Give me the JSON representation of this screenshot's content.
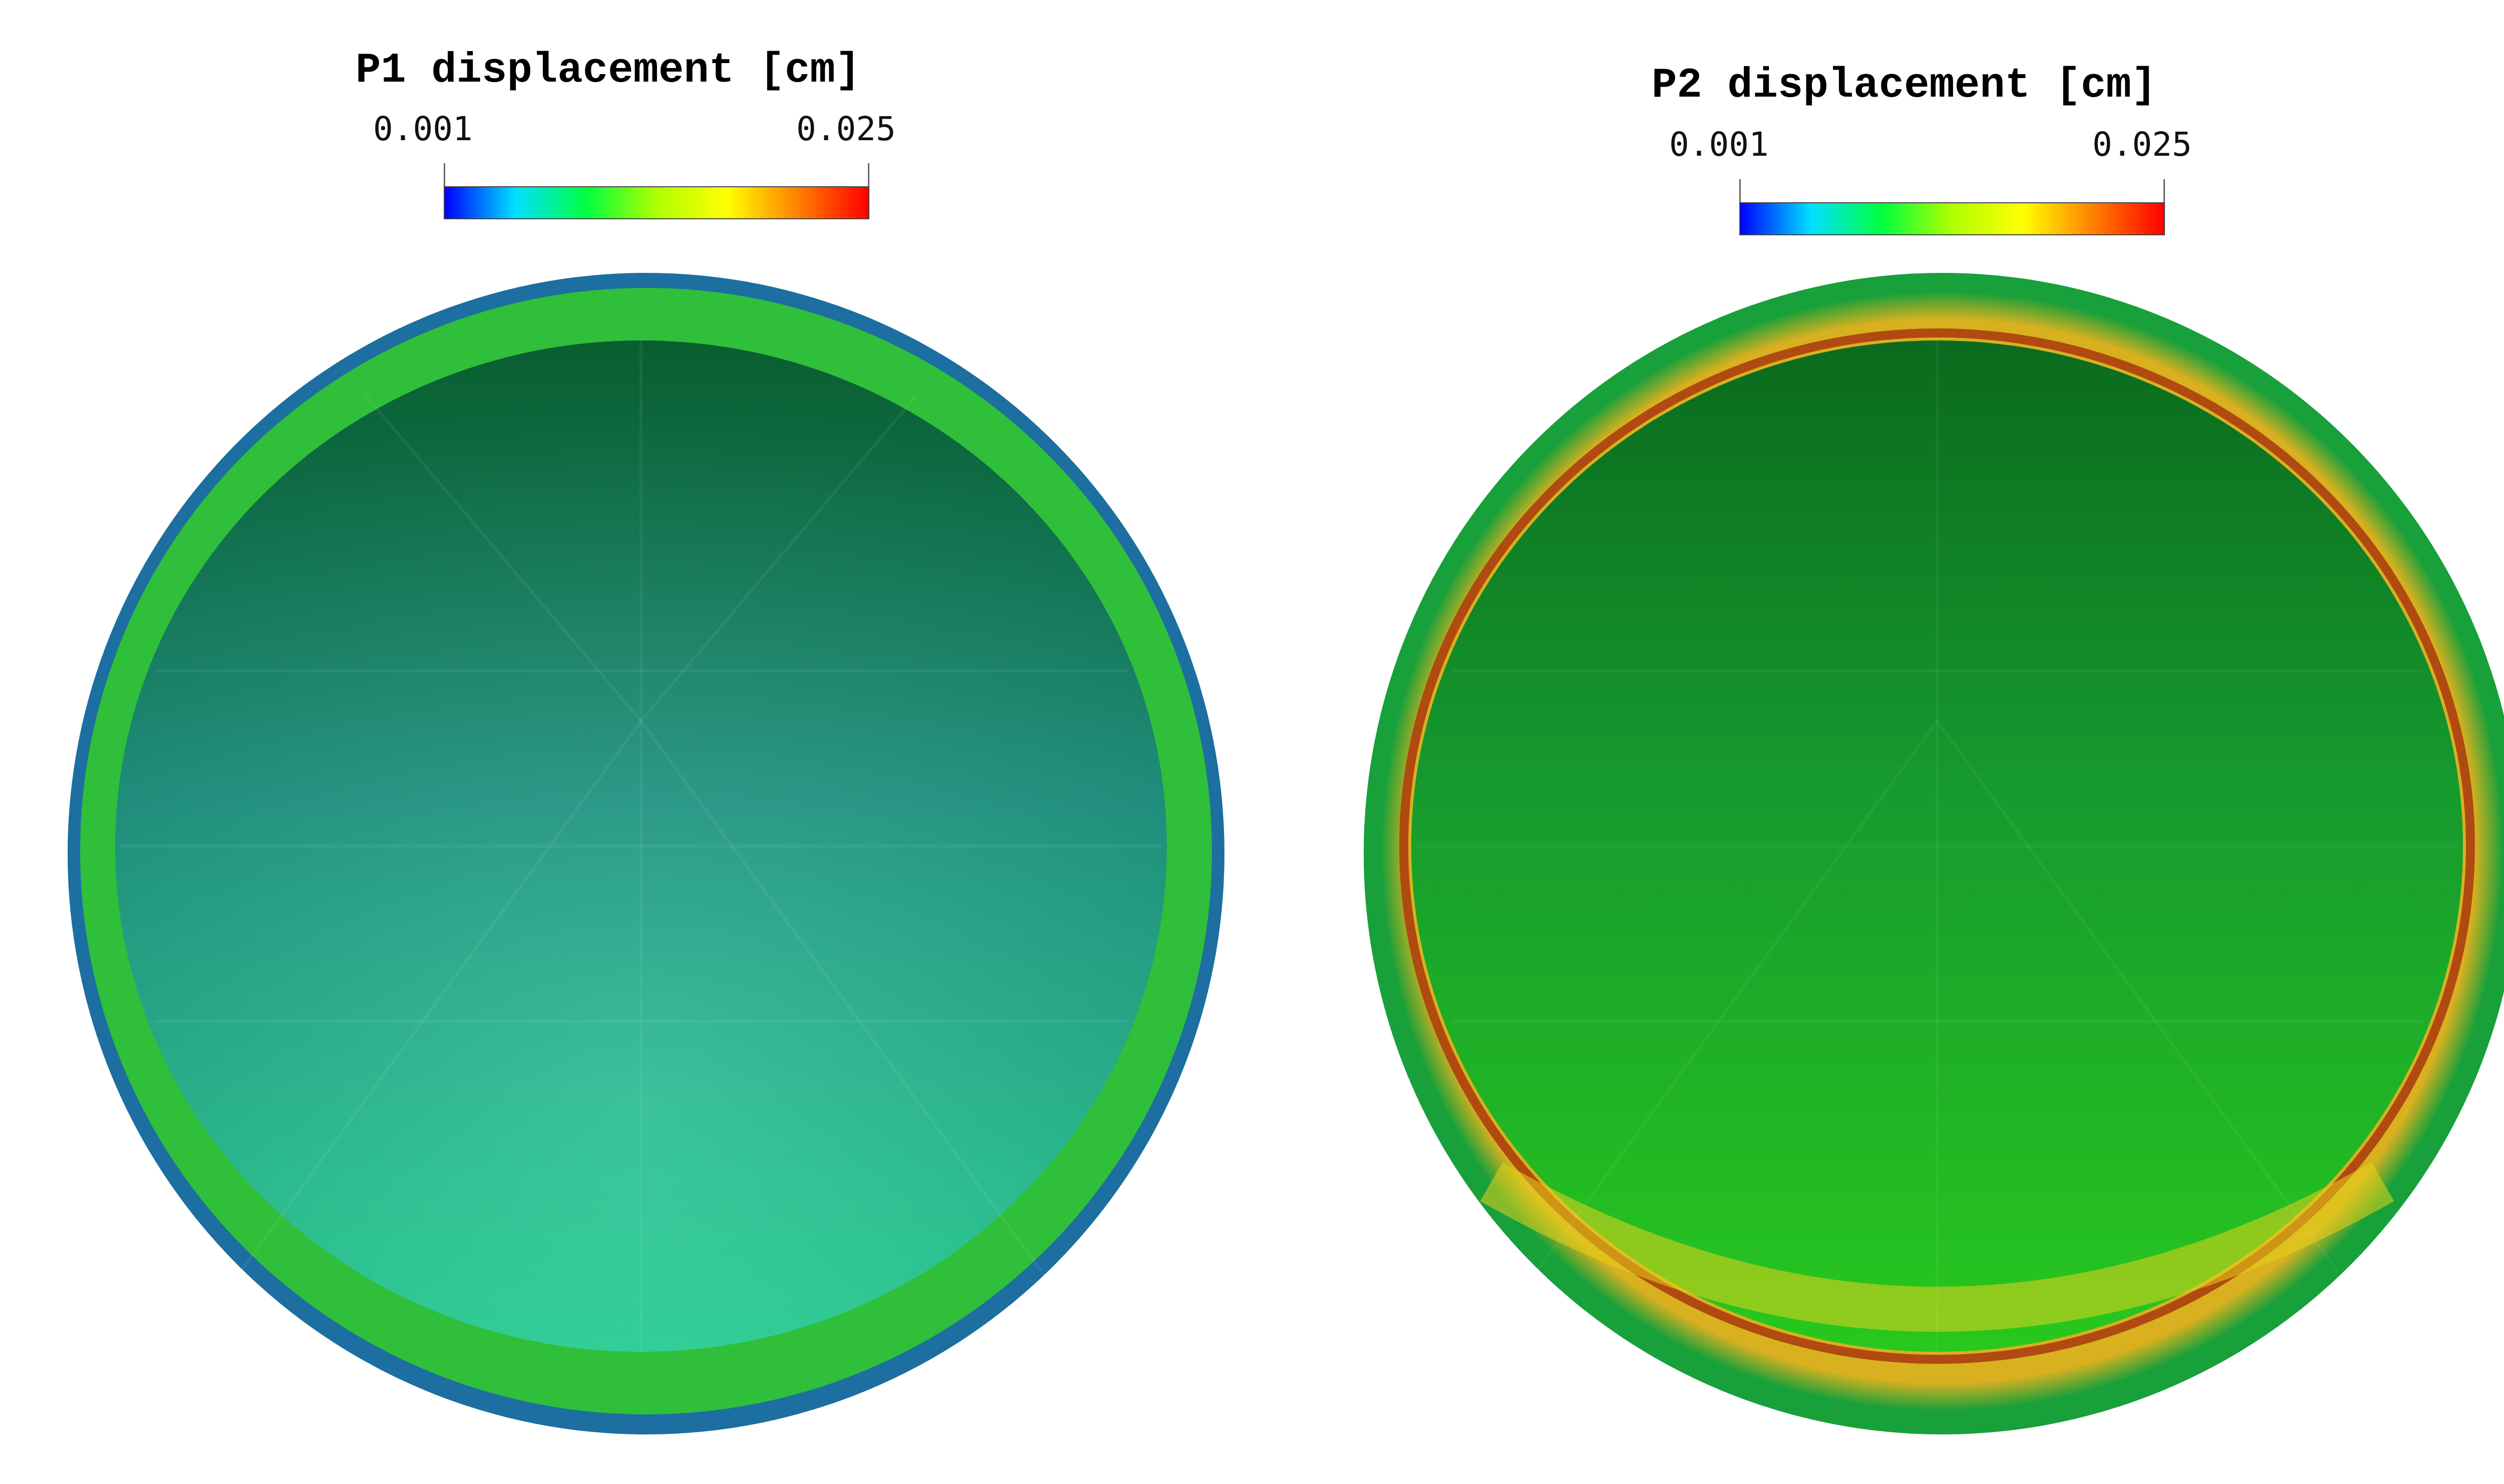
{
  "panels": [
    {
      "title": "P1 displacement [cm]",
      "range_min_label": "0.001",
      "range_max_label": "0.025",
      "colormap": [
        "#0000ff",
        "#00e0ff",
        "#00ff40",
        "#b0ff00",
        "#ffff00",
        "#ff8000",
        "#ff0000"
      ]
    },
    {
      "title": "P2 displacement [cm]",
      "range_min_label": "0.001",
      "range_max_label": "0.025",
      "colormap": [
        "#0000ff",
        "#00e0ff",
        "#00ff40",
        "#b0ff00",
        "#ffff00",
        "#ff8000",
        "#ff0000"
      ]
    }
  ],
  "colors": {
    "p1_interior_top": "#0a6b35",
    "p1_interior_mid": "#1e9a86",
    "p1_interior_bottom": "#22d495",
    "p1_rim": "#2fbf3a",
    "p1_outer_edge": "#1c6fa0",
    "p2_interior_top": "#0b6a1e",
    "p2_interior_mid": "#169b2e",
    "p2_interior_bottom": "#28c81e",
    "p2_rim_hot": "#d8b020",
    "p2_rim_inner": "#b04a10",
    "p2_outer_edge": "#18a03a"
  }
}
